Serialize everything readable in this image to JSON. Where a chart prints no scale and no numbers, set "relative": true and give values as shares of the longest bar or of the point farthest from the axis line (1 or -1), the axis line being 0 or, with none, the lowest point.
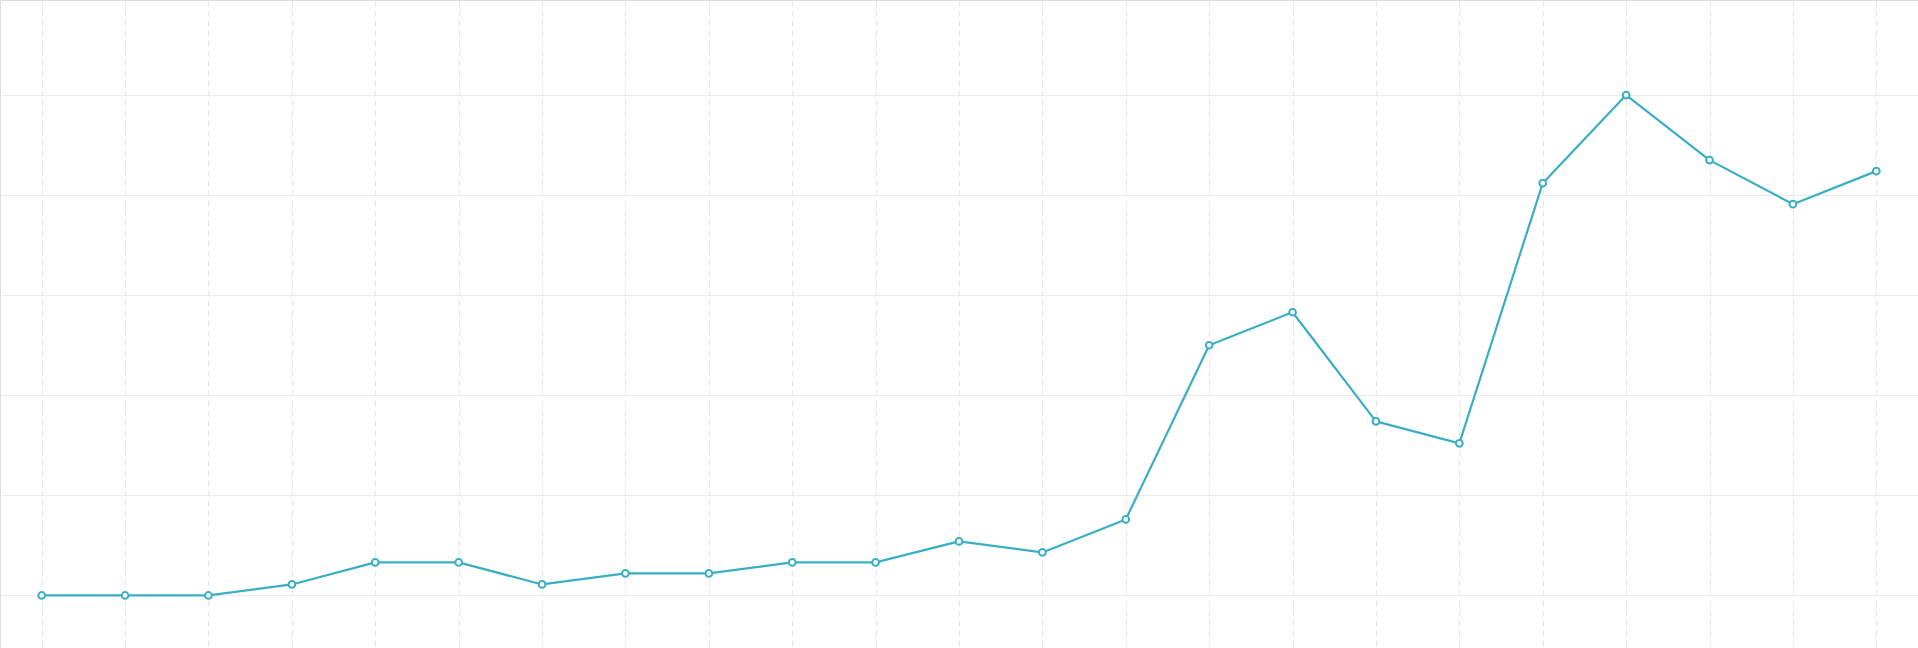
{
  "chart_data": {
    "type": "line",
    "relative": true,
    "grid": true,
    "marker": "circle",
    "line_style": "solid",
    "categories": [
      null,
      null,
      null,
      null,
      null,
      null,
      null,
      null,
      null,
      null,
      null,
      null,
      null,
      null,
      null,
      null,
      null,
      null,
      null,
      null,
      null,
      null,
      null
    ],
    "series": [
      {
        "color": "#3aaec4",
        "values": [
          0,
          0,
          0,
          0.022,
          0.066,
          0.066,
          0.022,
          0.044,
          0.044,
          0.066,
          0.066,
          0.108,
          0.086,
          0.152,
          0.5,
          0.566,
          0.348,
          0.304,
          0.824,
          1,
          0.87,
          0.782,
          0.848
        ]
      }
    ]
  }
}
